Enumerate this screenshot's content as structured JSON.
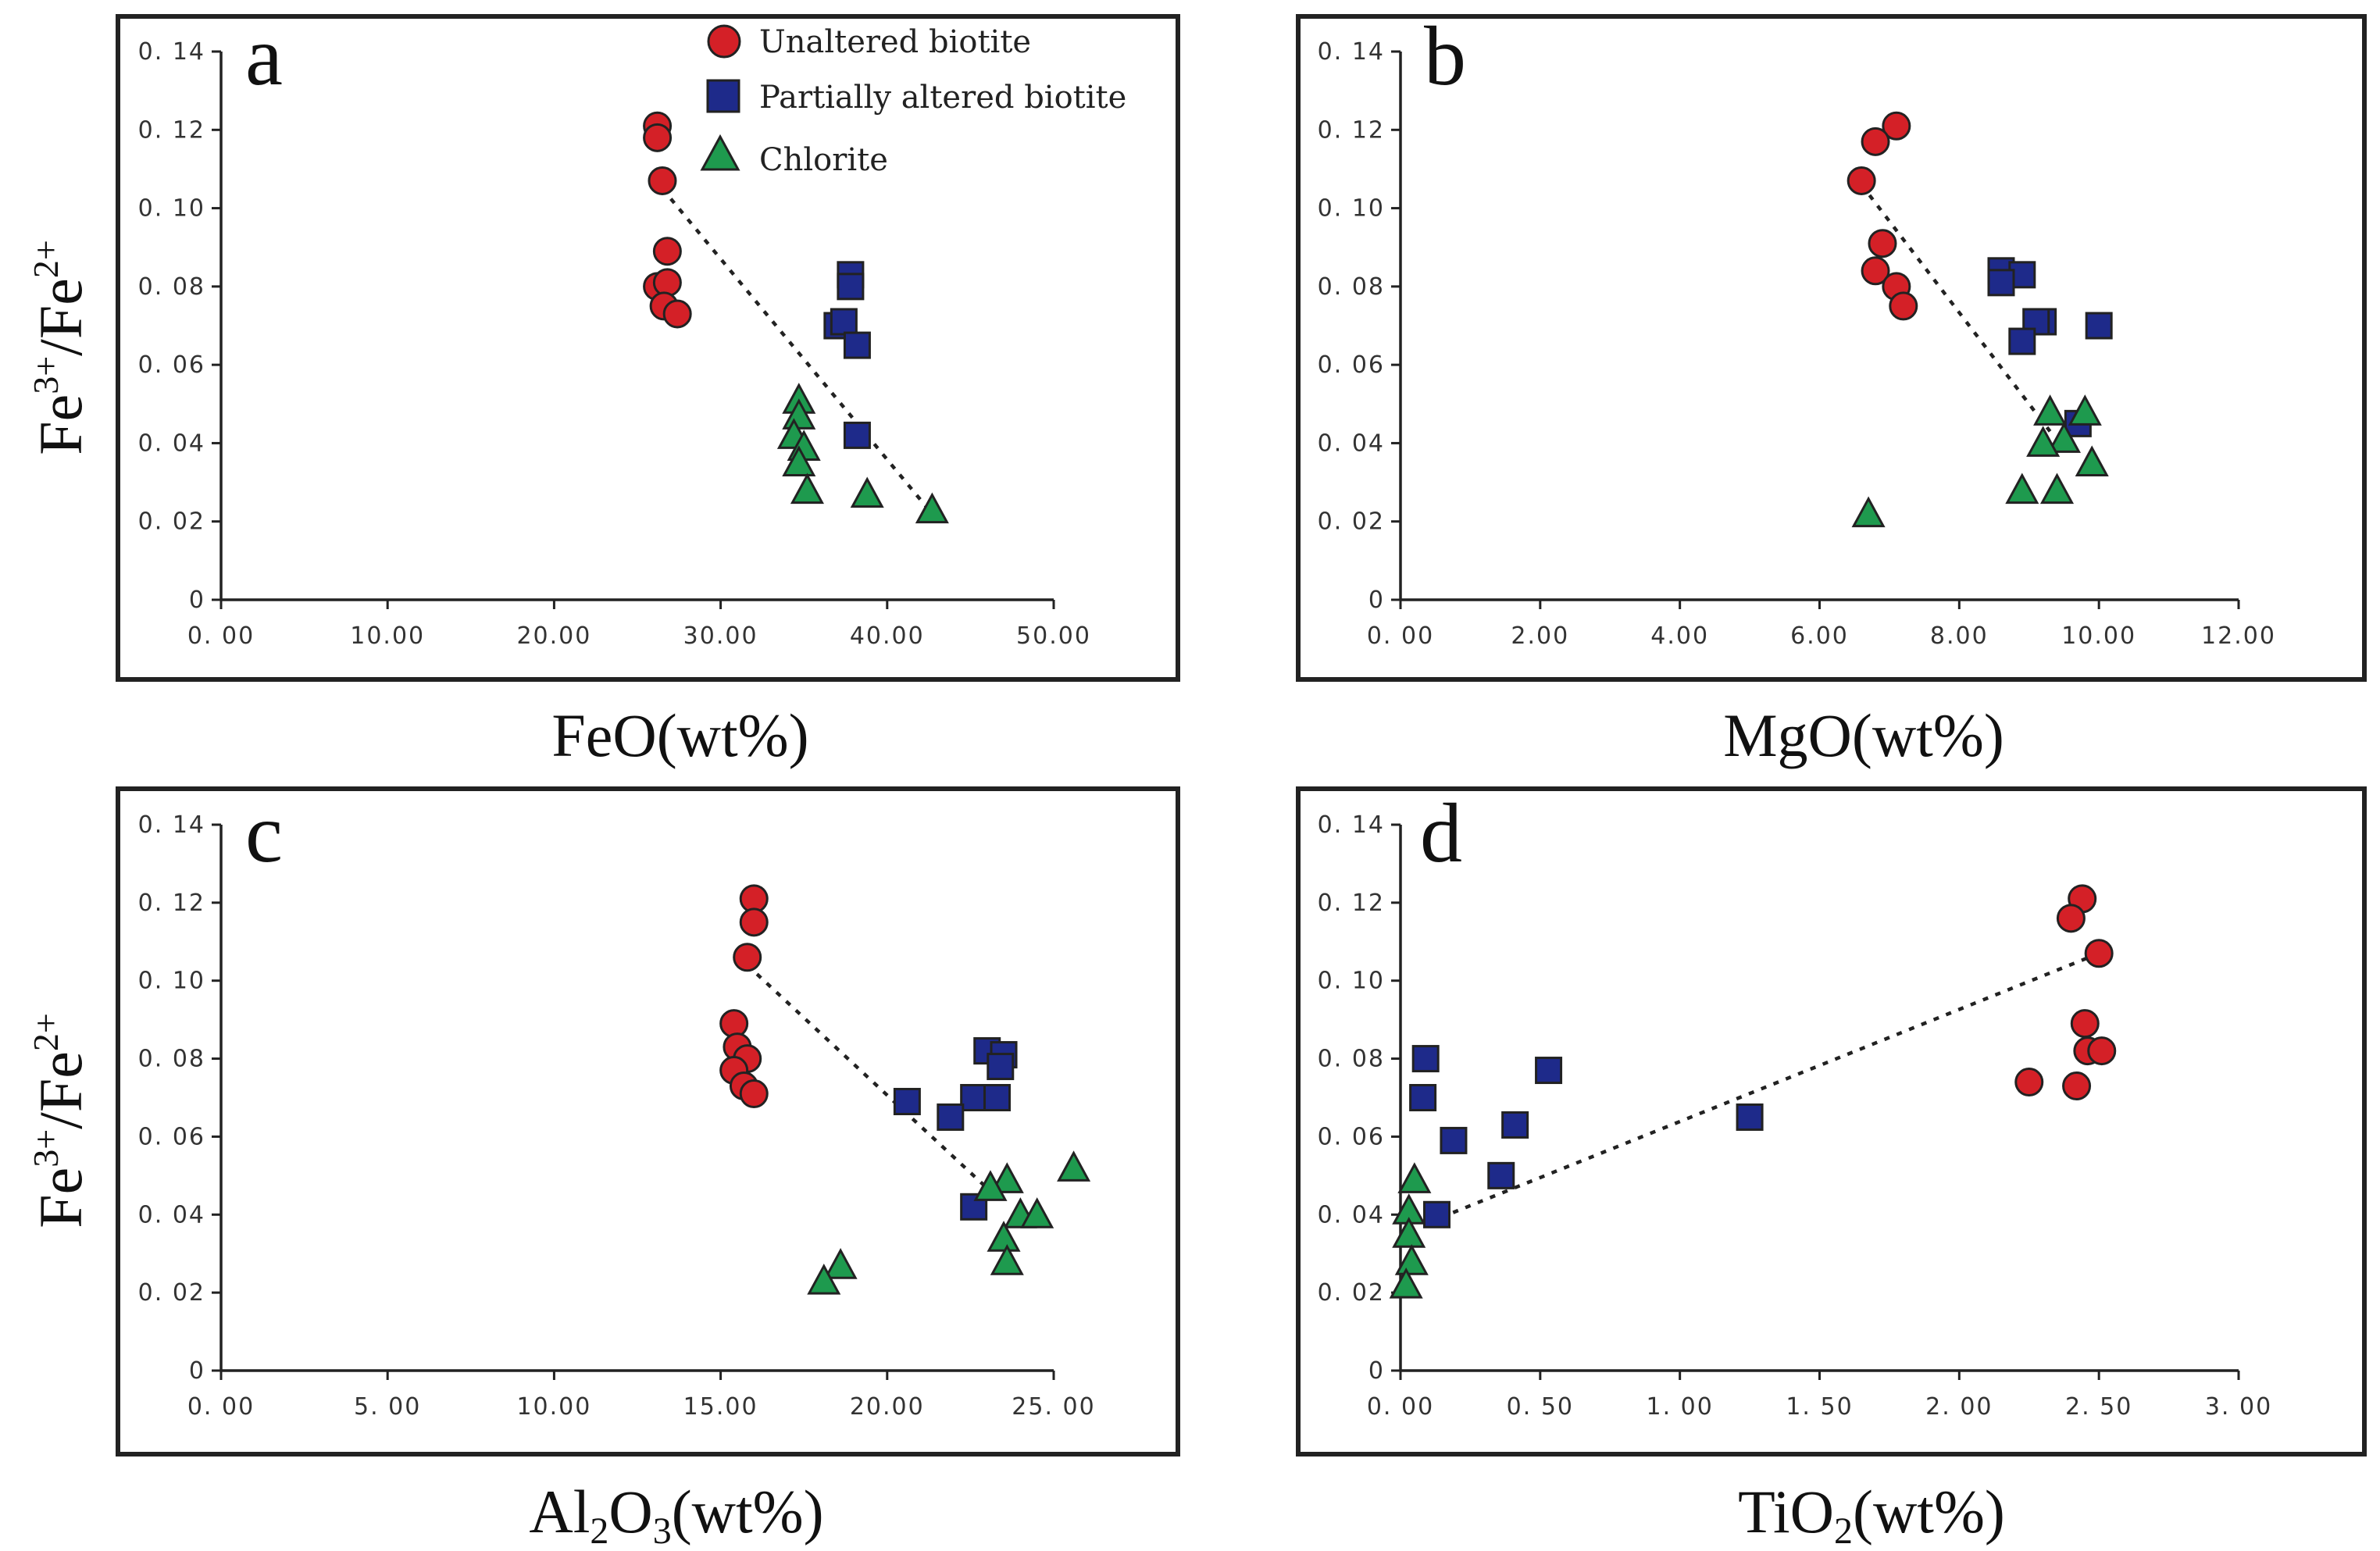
{
  "colors": {
    "unaltered": "#d42027",
    "partially_altered": "#1e2a8a",
    "chlorite": "#1e9a4e"
  },
  "legend": [
    {
      "key": "unaltered",
      "label": "Unaltered biotite",
      "marker": "circle"
    },
    {
      "key": "partially_altered",
      "label": "Partially altered biotite",
      "marker": "square"
    },
    {
      "key": "chlorite",
      "label": "Chlorite",
      "marker": "triangle"
    }
  ],
  "y_label": {
    "base": "Fe",
    "sup1": "3+",
    "mid": "/Fe",
    "sup2": "2+"
  },
  "chart_data": [
    {
      "panel": "a",
      "type": "scatter",
      "xlabel": {
        "pre": "FeO(wt%)",
        "sub": "",
        "post": ""
      },
      "xlim": [
        0,
        50
      ],
      "ylim": [
        0,
        0.14
      ],
      "xticks": [
        "0. 00",
        "10.00",
        "20.00",
        "30.00",
        "40.00",
        "50.00"
      ],
      "yticks": [
        "0",
        "0. 02",
        "0. 04",
        "0. 06",
        "0. 08",
        "0. 10",
        "0. 12",
        "0. 14"
      ],
      "trendline": [
        [
          26.5,
          0.105
        ],
        [
          42.5,
          0.023
        ]
      ],
      "series": [
        {
          "name": "Unaltered biotite",
          "key": "unaltered",
          "points": [
            [
              26.2,
              0.121
            ],
            [
              26.2,
              0.118
            ],
            [
              26.5,
              0.107
            ],
            [
              26.8,
              0.089
            ],
            [
              26.2,
              0.08
            ],
            [
              26.8,
              0.081
            ],
            [
              26.6,
              0.075
            ],
            [
              27.4,
              0.073
            ]
          ]
        },
        {
          "name": "Partially altered biotite",
          "key": "partially_altered",
          "points": [
            [
              37.8,
              0.083
            ],
            [
              37.8,
              0.08
            ],
            [
              37.0,
              0.07
            ],
            [
              37.4,
              0.071
            ],
            [
              38.2,
              0.065
            ],
            [
              38.2,
              0.042
            ]
          ]
        },
        {
          "name": "Chlorite",
          "key": "chlorite",
          "points": [
            [
              34.7,
              0.051
            ],
            [
              34.7,
              0.047
            ],
            [
              34.4,
              0.042
            ],
            [
              35.0,
              0.039
            ],
            [
              34.7,
              0.035
            ],
            [
              35.2,
              0.028
            ],
            [
              38.8,
              0.027
            ],
            [
              42.7,
              0.023
            ]
          ]
        }
      ]
    },
    {
      "panel": "b",
      "type": "scatter",
      "xlabel": {
        "pre": "MgO(wt%)",
        "sub": "",
        "post": ""
      },
      "xlim": [
        0,
        12
      ],
      "ylim": [
        0,
        0.14
      ],
      "xticks": [
        "0. 00",
        "2.00",
        "4.00",
        "6.00",
        "8.00",
        "10.00",
        "12.00"
      ],
      "yticks": [
        "0",
        "0. 02",
        "0. 04",
        "0. 06",
        "0. 08",
        "0. 10",
        "0. 12",
        "0. 14"
      ],
      "trendline": [
        [
          6.6,
          0.106
        ],
        [
          9.3,
          0.043
        ]
      ],
      "series": [
        {
          "name": "Unaltered biotite",
          "key": "unaltered",
          "points": [
            [
              7.1,
              0.121
            ],
            [
              6.8,
              0.117
            ],
            [
              6.6,
              0.107
            ],
            [
              6.9,
              0.091
            ],
            [
              6.8,
              0.084
            ],
            [
              7.1,
              0.08
            ],
            [
              7.2,
              0.075
            ]
          ]
        },
        {
          "name": "Partially altered biotite",
          "key": "partially_altered",
          "points": [
            [
              8.6,
              0.084
            ],
            [
              8.9,
              0.083
            ],
            [
              8.6,
              0.081
            ],
            [
              9.2,
              0.071
            ],
            [
              9.1,
              0.071
            ],
            [
              10.0,
              0.07
            ],
            [
              8.9,
              0.066
            ],
            [
              9.7,
              0.045
            ]
          ]
        },
        {
          "name": "Chlorite",
          "key": "chlorite",
          "points": [
            [
              9.3,
              0.048
            ],
            [
              9.8,
              0.048
            ],
            [
              9.5,
              0.041
            ],
            [
              9.2,
              0.04
            ],
            [
              9.9,
              0.035
            ],
            [
              8.9,
              0.028
            ],
            [
              9.4,
              0.028
            ],
            [
              6.7,
              0.022
            ]
          ]
        }
      ]
    },
    {
      "panel": "c",
      "type": "scatter",
      "xlabel": {
        "pre": "Al",
        "sub": "2",
        "post": "O",
        "sub2": "3",
        "post2": "(wt%)"
      },
      "xlim": [
        0,
        25
      ],
      "ylim": [
        0,
        0.14
      ],
      "xticks": [
        "0. 00",
        "5. 00",
        "10.00",
        "15.00",
        "20.00",
        "25. 00"
      ],
      "yticks": [
        "0",
        "0. 02",
        "0. 04",
        "0. 06",
        "0. 08",
        "0. 10",
        "0. 12",
        "0. 14"
      ],
      "trendline": [
        [
          15.8,
          0.104
        ],
        [
          23.1,
          0.046
        ]
      ],
      "series": [
        {
          "name": "Unaltered biotite",
          "key": "unaltered",
          "points": [
            [
              16.0,
              0.121
            ],
            [
              16.0,
              0.115
            ],
            [
              15.8,
              0.106
            ],
            [
              15.4,
              0.089
            ],
            [
              15.5,
              0.083
            ],
            [
              15.8,
              0.08
            ],
            [
              15.4,
              0.077
            ],
            [
              15.7,
              0.073
            ],
            [
              16.0,
              0.071
            ]
          ]
        },
        {
          "name": "Partially altered biotite",
          "key": "partially_altered",
          "points": [
            [
              23.0,
              0.082
            ],
            [
              23.5,
              0.081
            ],
            [
              23.4,
              0.078
            ],
            [
              22.6,
              0.07
            ],
            [
              23.3,
              0.07
            ],
            [
              20.6,
              0.069
            ],
            [
              21.9,
              0.065
            ],
            [
              22.6,
              0.042
            ]
          ]
        },
        {
          "name": "Chlorite",
          "key": "chlorite",
          "points": [
            [
              25.6,
              0.052
            ],
            [
              23.6,
              0.049
            ],
            [
              23.1,
              0.047
            ],
            [
              24.0,
              0.04
            ],
            [
              24.5,
              0.04
            ],
            [
              23.5,
              0.034
            ],
            [
              23.6,
              0.028
            ],
            [
              18.6,
              0.027
            ],
            [
              18.1,
              0.023
            ]
          ]
        }
      ]
    },
    {
      "panel": "d",
      "type": "scatter",
      "xlabel": {
        "pre": "TiO",
        "sub": "2",
        "post": "(wt%)"
      },
      "xlim": [
        0,
        3
      ],
      "ylim": [
        0,
        0.14
      ],
      "xticks": [
        "0. 00",
        "0. 50",
        "1. 00",
        "1. 50",
        "2. 00",
        "2. 50",
        "3. 00"
      ],
      "yticks": [
        "0",
        "0. 02",
        "0. 04",
        "0. 06",
        "0. 08",
        "0. 10",
        "0. 12",
        "0. 14"
      ],
      "trendline": [
        [
          0.1,
          0.038
        ],
        [
          2.5,
          0.107
        ]
      ],
      "series": [
        {
          "name": "Unaltered biotite",
          "key": "unaltered",
          "points": [
            [
              2.44,
              0.121
            ],
            [
              2.4,
              0.116
            ],
            [
              2.5,
              0.107
            ],
            [
              2.45,
              0.089
            ],
            [
              2.46,
              0.082
            ],
            [
              2.51,
              0.082
            ],
            [
              2.25,
              0.074
            ],
            [
              2.42,
              0.073
            ]
          ]
        },
        {
          "name": "Partially altered biotite",
          "key": "partially_altered",
          "points": [
            [
              0.09,
              0.08
            ],
            [
              0.08,
              0.07
            ],
            [
              0.53,
              0.077
            ],
            [
              0.41,
              0.063
            ],
            [
              0.19,
              0.059
            ],
            [
              0.36,
              0.05
            ],
            [
              1.25,
              0.065
            ],
            [
              0.13,
              0.04
            ]
          ]
        },
        {
          "name": "Chlorite",
          "key": "chlorite",
          "points": [
            [
              0.05,
              0.049
            ],
            [
              0.03,
              0.041
            ],
            [
              0.03,
              0.035
            ],
            [
              0.04,
              0.028
            ],
            [
              0.02,
              0.022
            ]
          ]
        }
      ]
    }
  ]
}
